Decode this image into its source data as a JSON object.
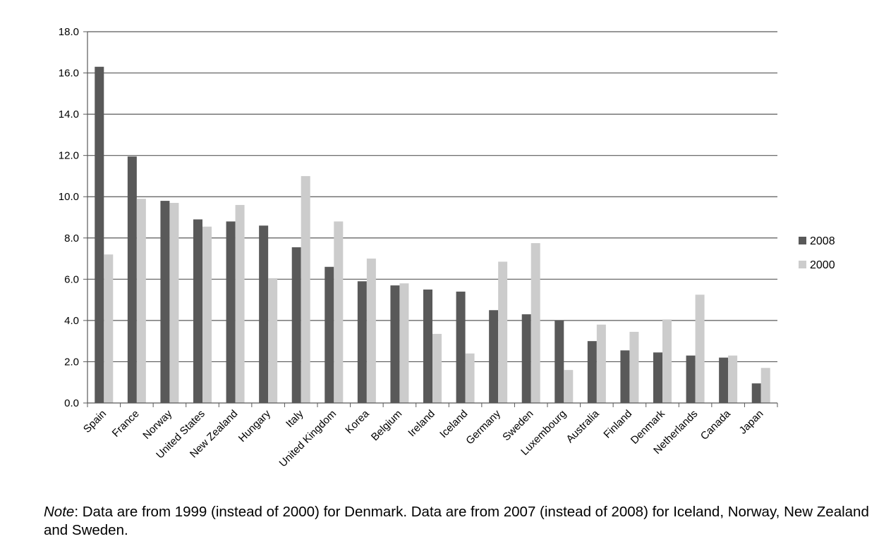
{
  "chart_data": {
    "type": "bar",
    "title": "",
    "xlabel": "",
    "ylabel": "",
    "ylim": [
      0,
      18
    ],
    "y_ticks": [
      "0.0",
      "2.0",
      "4.0",
      "6.0",
      "8.0",
      "10.0",
      "12.0",
      "14.0",
      "16.0",
      "18.0"
    ],
    "grid": true,
    "legend_position": "right",
    "categories": [
      "Spain",
      "France",
      "Norway",
      "United States",
      "New Zealand",
      "Hungary",
      "Italy",
      "United Kingdom",
      "Korea",
      "Belgium",
      "Ireland",
      "Iceland",
      "Germany",
      "Sweden",
      "Luxembourg",
      "Australia",
      "Finland",
      "Denmark",
      "Netherlands",
      "Canada",
      "Japan"
    ],
    "series": [
      {
        "name": "2008",
        "color": "#595959",
        "values": [
          16.3,
          11.95,
          9.8,
          8.9,
          8.8,
          8.6,
          7.55,
          6.6,
          5.9,
          5.7,
          5.5,
          5.4,
          4.5,
          4.3,
          4.0,
          3.0,
          2.55,
          2.45,
          2.3,
          2.2,
          0.95
        ]
      },
      {
        "name": "2000",
        "color": "#cccccc",
        "values": [
          7.2,
          9.9,
          9.7,
          8.55,
          9.6,
          6.05,
          11.0,
          8.8,
          7.0,
          5.8,
          3.35,
          2.4,
          6.85,
          7.75,
          1.6,
          3.8,
          3.45,
          4.05,
          5.25,
          2.3,
          1.7
        ]
      }
    ]
  },
  "note": {
    "label": "Note",
    "text": ": Data are from 1999 (instead of 2000) for Denmark. Data are from 2007 (instead of 2008) for Iceland, Norway, New Zealand and Sweden."
  }
}
